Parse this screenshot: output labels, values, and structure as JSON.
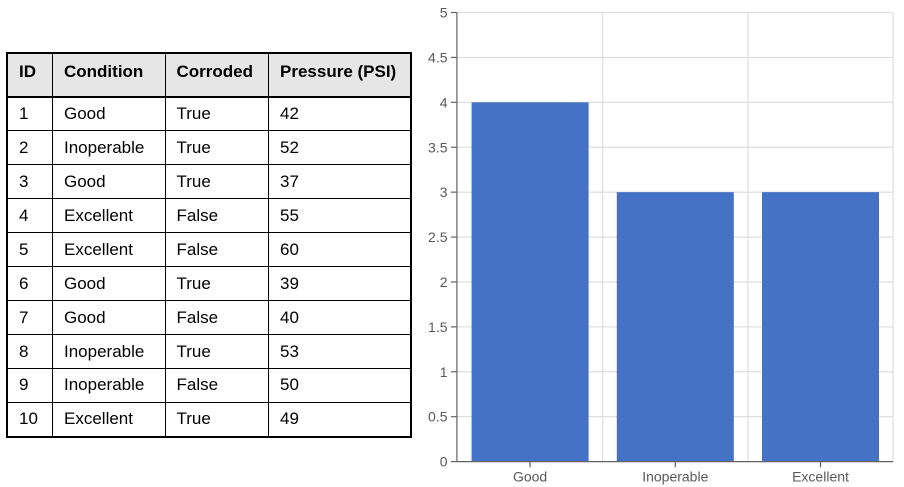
{
  "table": {
    "columns": [
      "ID",
      "Condition",
      "Corroded",
      "Pressure (PSI)"
    ],
    "rows": [
      [
        "1",
        "Good",
        "True",
        "42"
      ],
      [
        "2",
        "Inoperable",
        "True",
        "52"
      ],
      [
        "3",
        "Good",
        "True",
        "37"
      ],
      [
        "4",
        "Excellent",
        "False",
        "55"
      ],
      [
        "5",
        "Excellent",
        "False",
        "60"
      ],
      [
        "6",
        "Good",
        "True",
        "39"
      ],
      [
        "7",
        "Good",
        "False",
        "40"
      ],
      [
        "8",
        "Inoperable",
        "True",
        "53"
      ],
      [
        "9",
        "Inoperable",
        "False",
        "50"
      ],
      [
        "10",
        "Excellent",
        "True",
        "49"
      ]
    ]
  },
  "chart_data": {
    "type": "bar",
    "categories": [
      "Good",
      "Inoperable",
      "Excellent"
    ],
    "values": [
      4,
      3,
      3
    ],
    "title": "",
    "xlabel": "",
    "ylabel": "",
    "ylim": [
      0,
      5
    ],
    "ytick_step": 0.5,
    "ytick_labels": [
      "0",
      "0.5",
      "1",
      "1.5",
      "2",
      "2.5",
      "3",
      "3.5",
      "4",
      "4.5",
      "5"
    ],
    "grid": true,
    "legend": false
  },
  "colors": {
    "bar_fill": "#4472C4",
    "gridline": "#DBDBDB",
    "axis_line": "#636363",
    "tick_label": "#595959",
    "table_header_bg": "#E7E6E6",
    "table_border": "#000000",
    "table_text": "#000000"
  }
}
